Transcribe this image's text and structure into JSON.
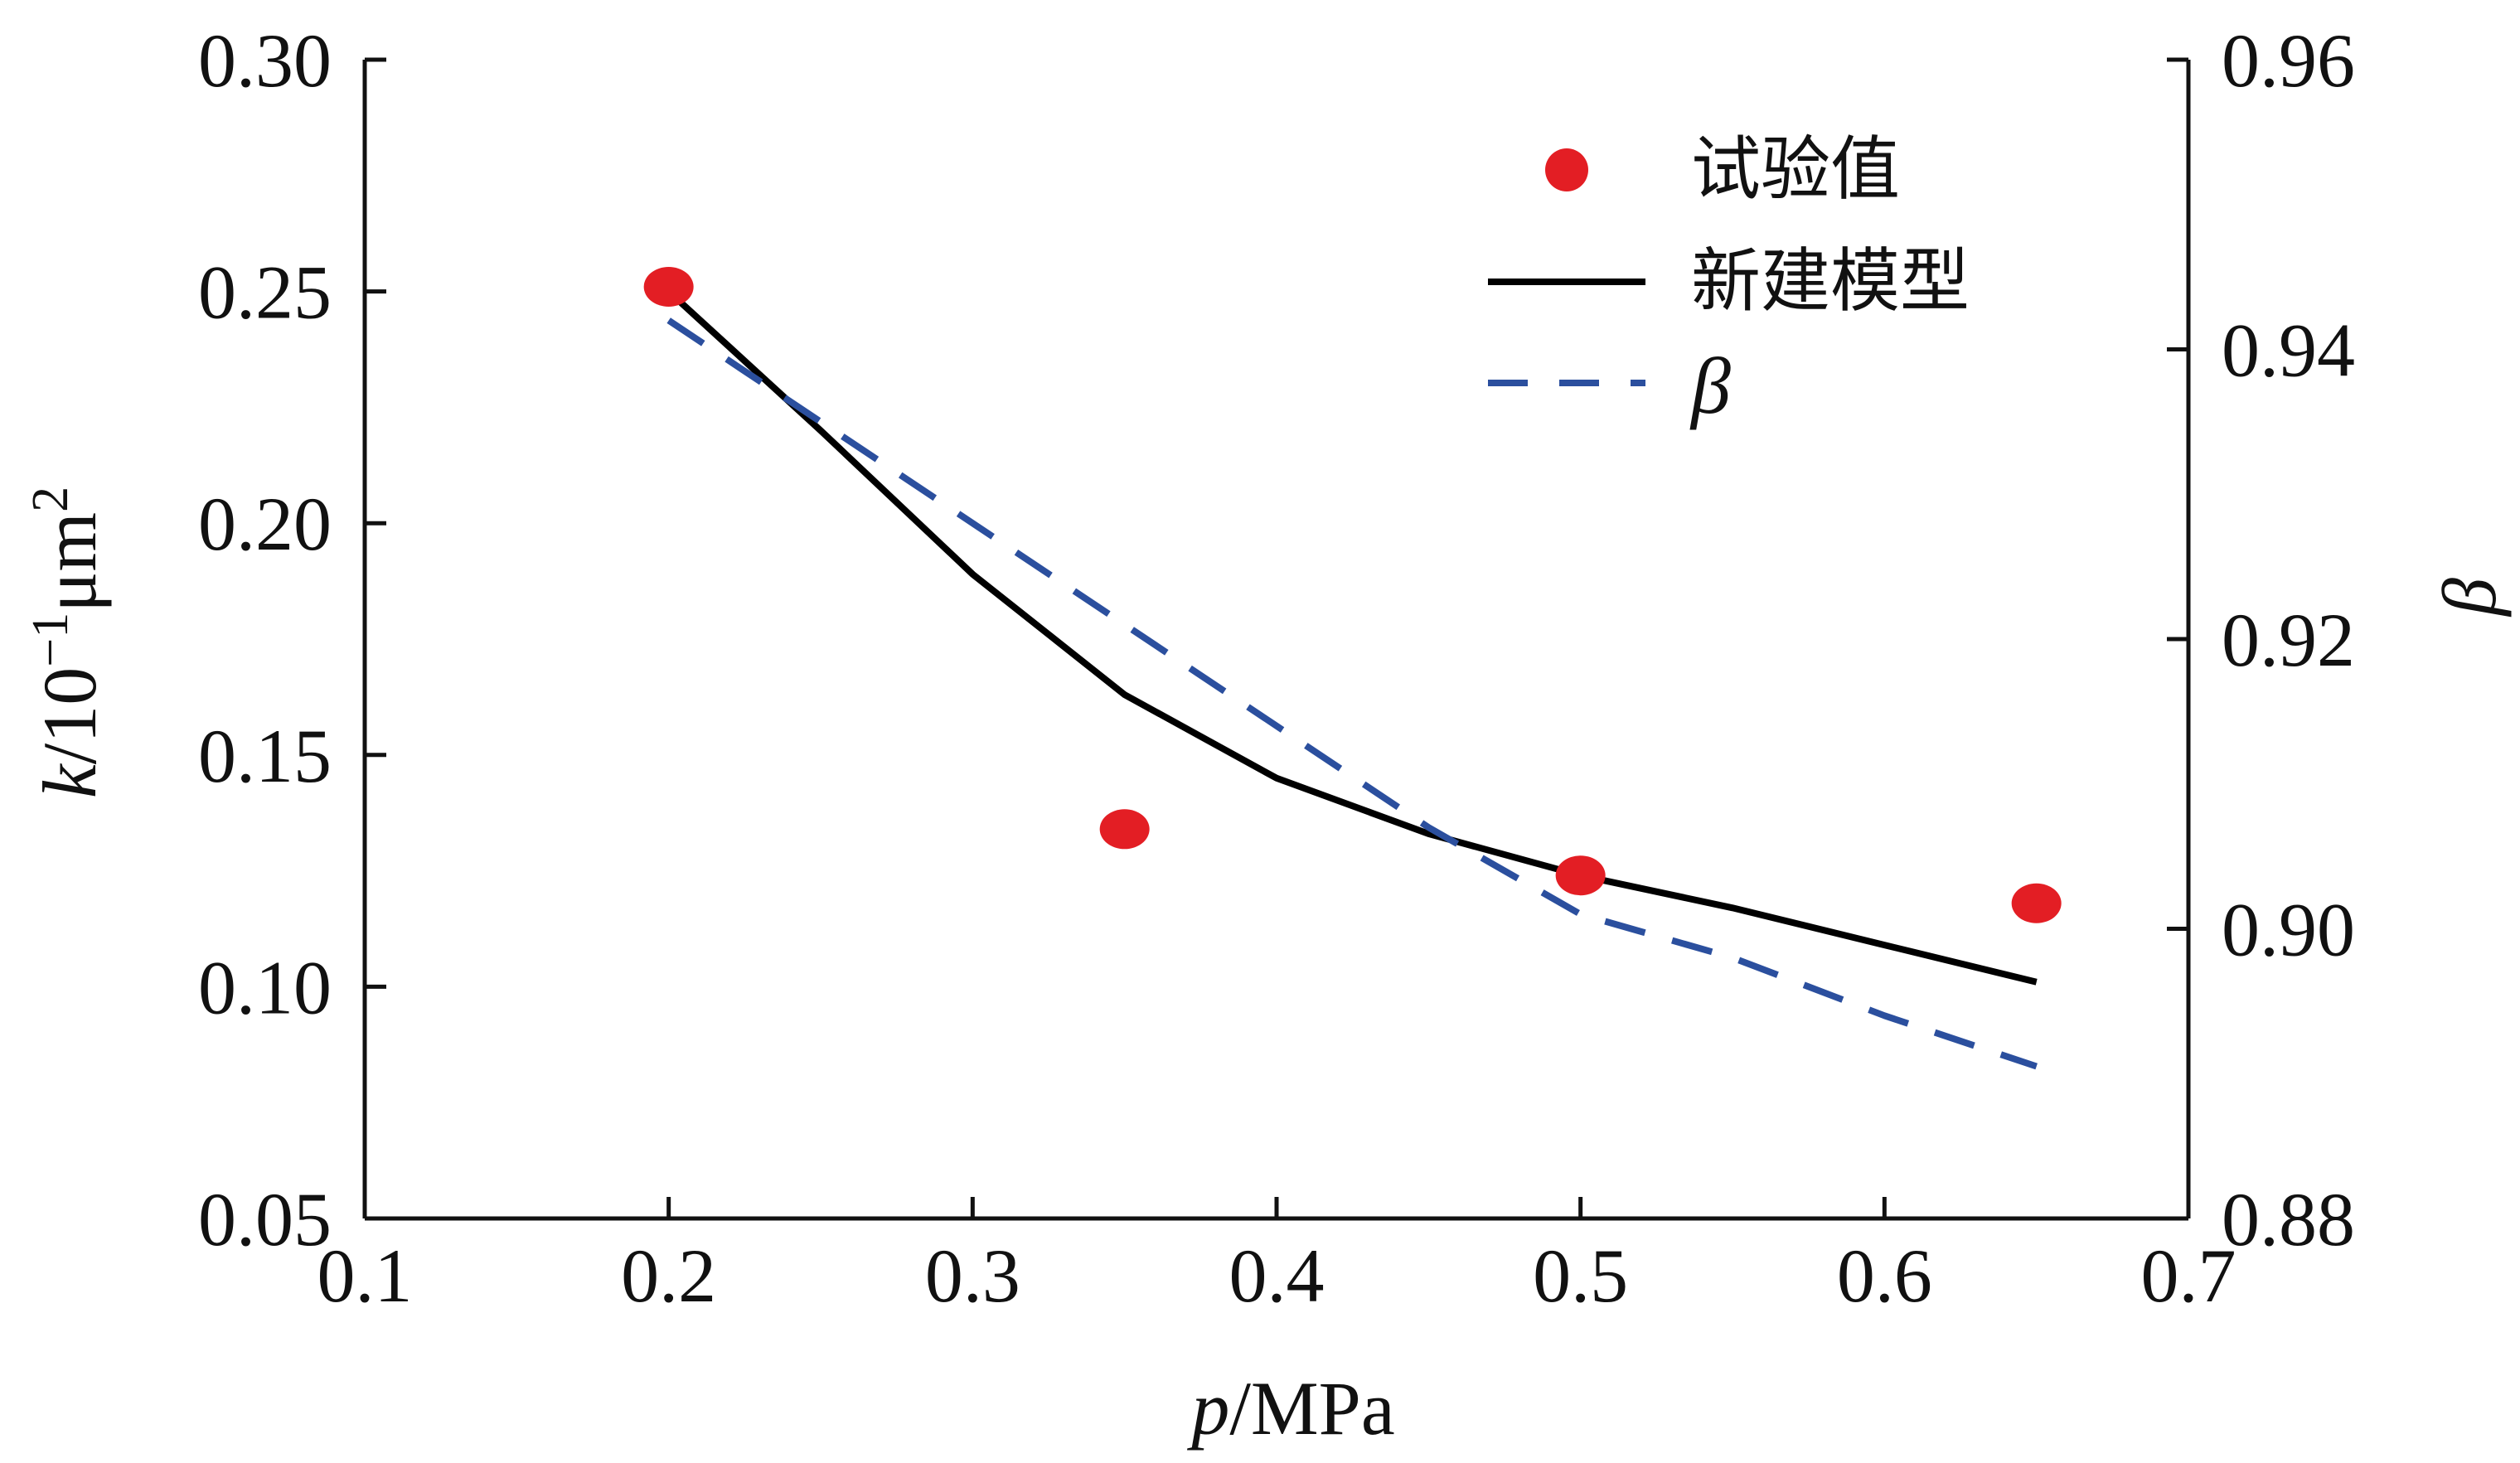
{
  "chart_data": {
    "type": "line",
    "x_axis": {
      "label_var": "p",
      "label_unit": "/MPa",
      "lim": [
        0.1,
        0.7
      ],
      "ticks": [
        0.1,
        0.2,
        0.3,
        0.4,
        0.5,
        0.6,
        0.7
      ],
      "tick_labels": [
        "0.1",
        "0.2",
        "0.3",
        "0.4",
        "0.5",
        "0.6",
        "0.7"
      ]
    },
    "y_left": {
      "label_var": "k",
      "label_unit_base": "/10",
      "label_unit_exp": "−1",
      "label_unit_mid": "μm",
      "label_unit_exp2": "2",
      "lim": [
        0.05,
        0.3
      ],
      "ticks": [
        0.05,
        0.1,
        0.15,
        0.2,
        0.25,
        0.3
      ],
      "tick_labels": [
        "0.05",
        "0.10",
        "0.15",
        "0.20",
        "0.25",
        "0.30"
      ]
    },
    "y_right": {
      "label": "β",
      "lim": [
        0.88,
        0.96
      ],
      "ticks": [
        0.88,
        0.9,
        0.92,
        0.94,
        0.96
      ],
      "tick_labels": [
        "0.88",
        "0.90",
        "0.92",
        "0.94",
        "0.96"
      ]
    },
    "series": [
      {
        "name": "试验值",
        "kind": "scatter",
        "axis": "left",
        "color": "#e31e24",
        "x": [
          0.2,
          0.35,
          0.5,
          0.65
        ],
        "y": [
          0.251,
          0.134,
          0.124,
          0.118
        ]
      },
      {
        "name": "新建模型",
        "kind": "line",
        "axis": "left",
        "color": "#000000",
        "x": [
          0.2,
          0.25,
          0.3,
          0.35,
          0.4,
          0.45,
          0.5,
          0.55,
          0.6,
          0.65
        ],
        "y": [
          0.25,
          0.22,
          0.189,
          0.163,
          0.145,
          0.133,
          0.124,
          0.117,
          0.109,
          0.101
        ]
      },
      {
        "name": "β",
        "kind": "line",
        "style": "dashed",
        "axis": "right",
        "color": "#2b4f9e",
        "x": [
          0.2,
          0.25,
          0.3,
          0.35,
          0.4,
          0.45,
          0.5,
          0.55,
          0.6,
          0.65
        ],
        "y": [
          0.942,
          0.935,
          0.928,
          0.921,
          0.914,
          0.907,
          0.901,
          0.898,
          0.894,
          0.8905
        ]
      }
    ],
    "legend": {
      "placement": "top-right",
      "entries": [
        "试验值",
        "新建模型",
        "β"
      ]
    },
    "grid": false
  }
}
